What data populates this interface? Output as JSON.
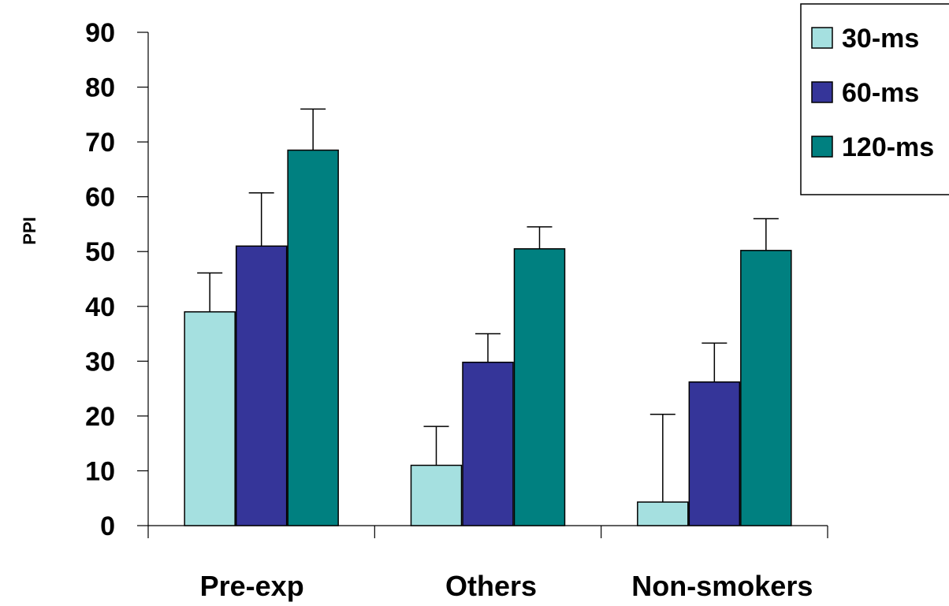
{
  "chart_data": {
    "type": "bar",
    "title": "",
    "xlabel": "",
    "ylabel": "PPI",
    "ylim": [
      0,
      90
    ],
    "yticks": [
      "0",
      "10",
      "20",
      "30",
      "40",
      "50",
      "60",
      "70",
      "80",
      "90"
    ],
    "categories": [
      "Pre-exp",
      "Others",
      "Non-smokers"
    ],
    "series": [
      {
        "name": "30-ms",
        "color": "#a5e0e0",
        "values": [
          39,
          11,
          4.3
        ],
        "errors": [
          7.1,
          7.1,
          16
        ]
      },
      {
        "name": "60-ms",
        "color": "#353599",
        "values": [
          51,
          29.8,
          26.2
        ],
        "errors": [
          9.7,
          5.2,
          7.1
        ]
      },
      {
        "name": "120-ms",
        "color": "#008080",
        "values": [
          68.5,
          50.5,
          50.2
        ],
        "errors": [
          7.5,
          4,
          5.8
        ]
      }
    ],
    "legend_position": "top-right",
    "grid": false
  }
}
